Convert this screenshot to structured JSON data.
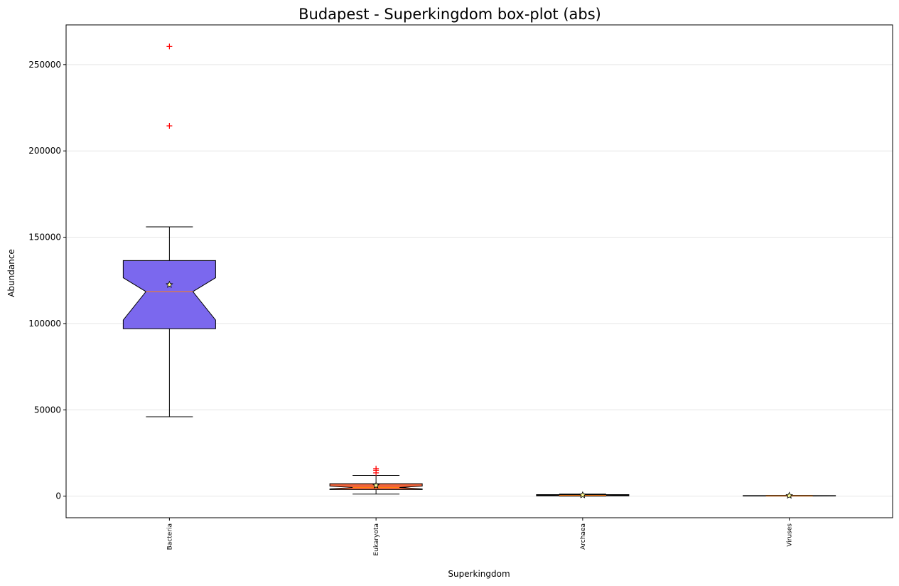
{
  "chart_data": {
    "type": "box",
    "title": "Budapest - Superkingdom box-plot (abs)",
    "xlabel": "Superkingdom",
    "ylabel": "Abundance",
    "ylim": [
      -12500,
      273000
    ],
    "yticks": [
      0,
      50000,
      100000,
      150000,
      200000,
      250000
    ],
    "ytick_labels": [
      "0",
      "50000",
      "100000",
      "150000",
      "200000",
      "250000"
    ],
    "grid": "horizontal",
    "categories": [
      "Bacteria",
      "Eukaryota",
      "Archaea",
      "Viruses"
    ],
    "boxes": [
      {
        "name": "Bacteria",
        "color": "#7b68ee",
        "whisker_low": 46000,
        "q1": 97000,
        "median": 118500,
        "q3": 136500,
        "whisker_high": 156000,
        "notch_low": 102000,
        "notch_high": 126500,
        "mean": 122500,
        "outliers": [
          214500,
          260500
        ]
      },
      {
        "name": "Eukaryota",
        "color": "#f0643c",
        "whisker_low": 1200,
        "q1": 3800,
        "median": 5000,
        "q3": 7200,
        "whisker_high": 12000,
        "notch_low": 4200,
        "notch_high": 5800,
        "mean": 6200,
        "outliers": [
          13500,
          15000,
          16000
        ]
      },
      {
        "name": "Archaea",
        "color": "#f0643c",
        "whisker_low": 0,
        "q1": 150,
        "median": 450,
        "q3": 900,
        "whisker_high": 1200,
        "notch_low": 300,
        "notch_high": 600,
        "mean": 600,
        "outliers": []
      },
      {
        "name": "Viruses",
        "color": "#f0643c",
        "whisker_low": 0,
        "q1": 50,
        "median": 150,
        "q3": 300,
        "whisker_high": 450,
        "notch_low": 100,
        "notch_high": 200,
        "mean": 350,
        "outliers": []
      }
    ],
    "outlier_color": "#ff0000",
    "mean_marker": "star"
  }
}
